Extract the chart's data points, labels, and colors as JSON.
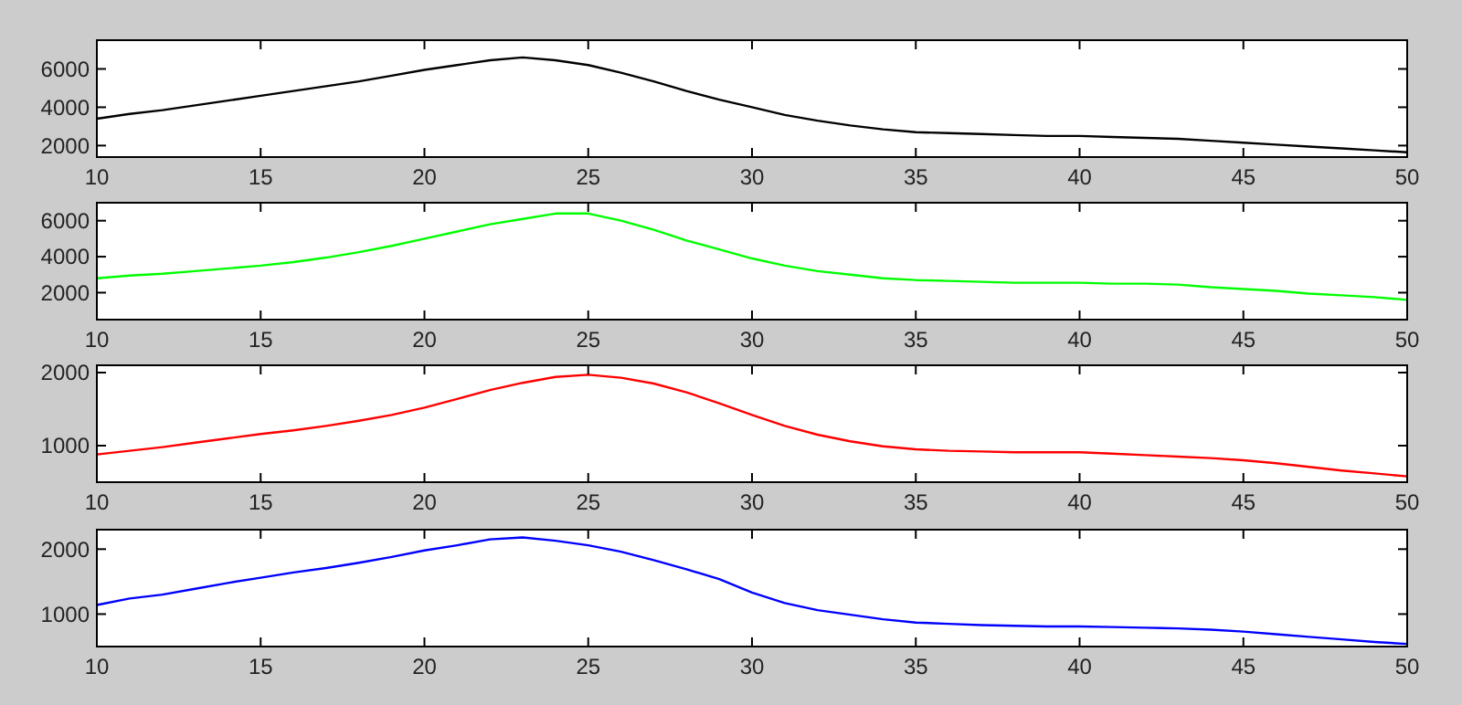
{
  "chart_data": [
    {
      "type": "line",
      "x": [
        10,
        11,
        12,
        13,
        14,
        15,
        16,
        17,
        18,
        19,
        20,
        21,
        22,
        23,
        24,
        25,
        26,
        27,
        28,
        29,
        30,
        31,
        32,
        33,
        34,
        35,
        36,
        37,
        38,
        39,
        40,
        41,
        42,
        43,
        44,
        45,
        46,
        47,
        48,
        49,
        50
      ],
      "xlim": [
        10,
        50
      ],
      "xticks": [
        10,
        15,
        20,
        25,
        30,
        35,
        40,
        45,
        50
      ],
      "ylim": [
        1400,
        7500
      ],
      "yticks": [
        2000,
        4000,
        6000
      ],
      "series": [
        {
          "color": "#000000",
          "values": [
            3400,
            3650,
            3850,
            4100,
            4350,
            4600,
            4850,
            5100,
            5350,
            5650,
            5950,
            6200,
            6450,
            6600,
            6450,
            6200,
            5800,
            5350,
            4850,
            4400,
            4000,
            3600,
            3300,
            3050,
            2850,
            2700,
            2650,
            2600,
            2550,
            2500,
            2500,
            2450,
            2400,
            2350,
            2250,
            2150,
            2050,
            1950,
            1850,
            1750,
            1650
          ]
        }
      ]
    },
    {
      "type": "line",
      "x": [
        10,
        11,
        12,
        13,
        14,
        15,
        16,
        17,
        18,
        19,
        20,
        21,
        22,
        23,
        24,
        25,
        26,
        27,
        28,
        29,
        30,
        31,
        32,
        33,
        34,
        35,
        36,
        37,
        38,
        39,
        40,
        41,
        42,
        43,
        44,
        45,
        46,
        47,
        48,
        49,
        50
      ],
      "xlim": [
        10,
        50
      ],
      "xticks": [
        10,
        15,
        20,
        25,
        30,
        35,
        40,
        45,
        50
      ],
      "ylim": [
        500,
        7000
      ],
      "yticks": [
        2000,
        4000,
        6000
      ],
      "series": [
        {
          "color": "#00ff00",
          "values": [
            2800,
            2950,
            3050,
            3200,
            3350,
            3500,
            3700,
            3950,
            4250,
            4600,
            5000,
            5400,
            5800,
            6100,
            6400,
            6400,
            6000,
            5500,
            4900,
            4400,
            3900,
            3500,
            3200,
            3000,
            2800,
            2700,
            2650,
            2600,
            2550,
            2550,
            2550,
            2500,
            2500,
            2450,
            2300,
            2200,
            2100,
            1950,
            1850,
            1750,
            1600
          ]
        }
      ]
    },
    {
      "type": "line",
      "x": [
        10,
        11,
        12,
        13,
        14,
        15,
        16,
        17,
        18,
        19,
        20,
        21,
        22,
        23,
        24,
        25,
        26,
        27,
        28,
        29,
        30,
        31,
        32,
        33,
        34,
        35,
        36,
        37,
        38,
        39,
        40,
        41,
        42,
        43,
        44,
        45,
        46,
        47,
        48,
        49,
        50
      ],
      "xlim": [
        10,
        50
      ],
      "xticks": [
        10,
        15,
        20,
        25,
        30,
        35,
        40,
        45,
        50
      ],
      "ylim": [
        500,
        2100
      ],
      "yticks": [
        1000,
        2000
      ],
      "series": [
        {
          "color": "#ff0000",
          "values": [
            880,
            930,
            980,
            1040,
            1100,
            1160,
            1210,
            1270,
            1340,
            1420,
            1520,
            1640,
            1760,
            1860,
            1940,
            1970,
            1930,
            1850,
            1730,
            1580,
            1420,
            1270,
            1150,
            1060,
            990,
            950,
            930,
            920,
            910,
            910,
            910,
            890,
            870,
            850,
            830,
            800,
            760,
            710,
            660,
            620,
            580
          ]
        }
      ]
    },
    {
      "type": "line",
      "x": [
        10,
        11,
        12,
        13,
        14,
        15,
        16,
        17,
        18,
        19,
        20,
        21,
        22,
        23,
        24,
        25,
        26,
        27,
        28,
        29,
        30,
        31,
        32,
        33,
        34,
        35,
        36,
        37,
        38,
        39,
        40,
        41,
        42,
        43,
        44,
        45,
        46,
        47,
        48,
        49,
        50
      ],
      "xlim": [
        10,
        50
      ],
      "xticks": [
        10,
        15,
        20,
        25,
        30,
        35,
        40,
        45,
        50
      ],
      "ylim": [
        500,
        2300
      ],
      "yticks": [
        1000,
        2000
      ],
      "series": [
        {
          "color": "#0000ff",
          "values": [
            1140,
            1240,
            1300,
            1390,
            1480,
            1560,
            1640,
            1710,
            1790,
            1880,
            1980,
            2060,
            2150,
            2180,
            2130,
            2060,
            1960,
            1830,
            1690,
            1540,
            1330,
            1170,
            1060,
            990,
            920,
            870,
            850,
            830,
            820,
            810,
            810,
            800,
            790,
            780,
            760,
            730,
            690,
            650,
            610,
            570,
            540
          ]
        }
      ]
    }
  ]
}
